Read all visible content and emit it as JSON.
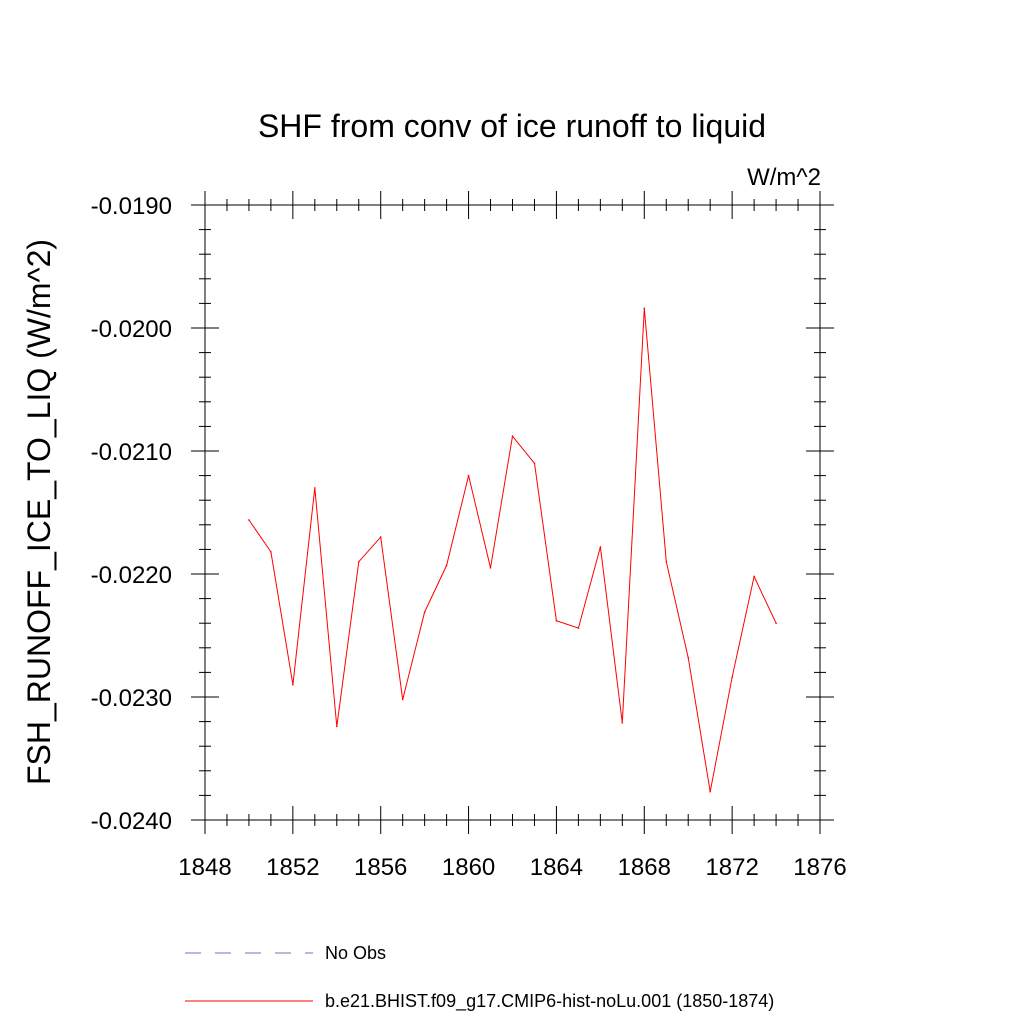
{
  "chart_data": {
    "type": "line",
    "title": "SHF from conv of ice runoff to liquid",
    "units_label": "W/m^2",
    "ylabel": "FSH_RUNOFF_ICE_TO_LIQ  (W/m^2)",
    "xlabel": "",
    "xlim": [
      1848,
      1876
    ],
    "ylim": [
      -0.024,
      -0.019
    ],
    "x_ticks": [
      1848,
      1852,
      1856,
      1860,
      1864,
      1868,
      1872,
      1876
    ],
    "x_tick_labels": [
      "1848",
      "1852",
      "1856",
      "1860",
      "1864",
      "1868",
      "1872",
      "1876"
    ],
    "y_ticks": [
      -0.019,
      -0.02,
      -0.021,
      -0.022,
      -0.023,
      -0.024
    ],
    "y_tick_labels": [
      "-0.0190",
      "-0.0200",
      "-0.0210",
      "-0.0220",
      "-0.0230",
      "-0.0240"
    ],
    "grid": false,
    "legend_placement": "bottom",
    "series": [
      {
        "name": "b.e21.BHIST.f09_g17.CMIP6-hist-noLu.001 (1850-1874)",
        "color": "#ff0000",
        "style": "solid",
        "x": [
          1850,
          1851,
          1852,
          1853,
          1854,
          1855,
          1856,
          1857,
          1858,
          1859,
          1860,
          1861,
          1862,
          1863,
          1864,
          1865,
          1866,
          1867,
          1868,
          1869,
          1870,
          1871,
          1872,
          1873,
          1874
        ],
        "y": [
          -0.02156,
          -0.02182,
          -0.0229,
          -0.0213,
          -0.02324,
          -0.0219,
          -0.0217,
          -0.02302,
          -0.02231,
          -0.02193,
          -0.0212,
          -0.02195,
          -0.02088,
          -0.0211,
          -0.02238,
          -0.02244,
          -0.02178,
          -0.02321,
          -0.01984,
          -0.0219,
          -0.02268,
          -0.02377,
          -0.02284,
          -0.02202,
          -0.0224
        ]
      }
    ],
    "legend": [
      {
        "label": "No Obs",
        "color": "#7b6fc0",
        "style": "dashed"
      },
      {
        "label": "b.e21.BHIST.f09_g17.CMIP6-hist-noLu.001 (1850-1874)",
        "color": "#ff0000",
        "style": "solid"
      }
    ]
  }
}
